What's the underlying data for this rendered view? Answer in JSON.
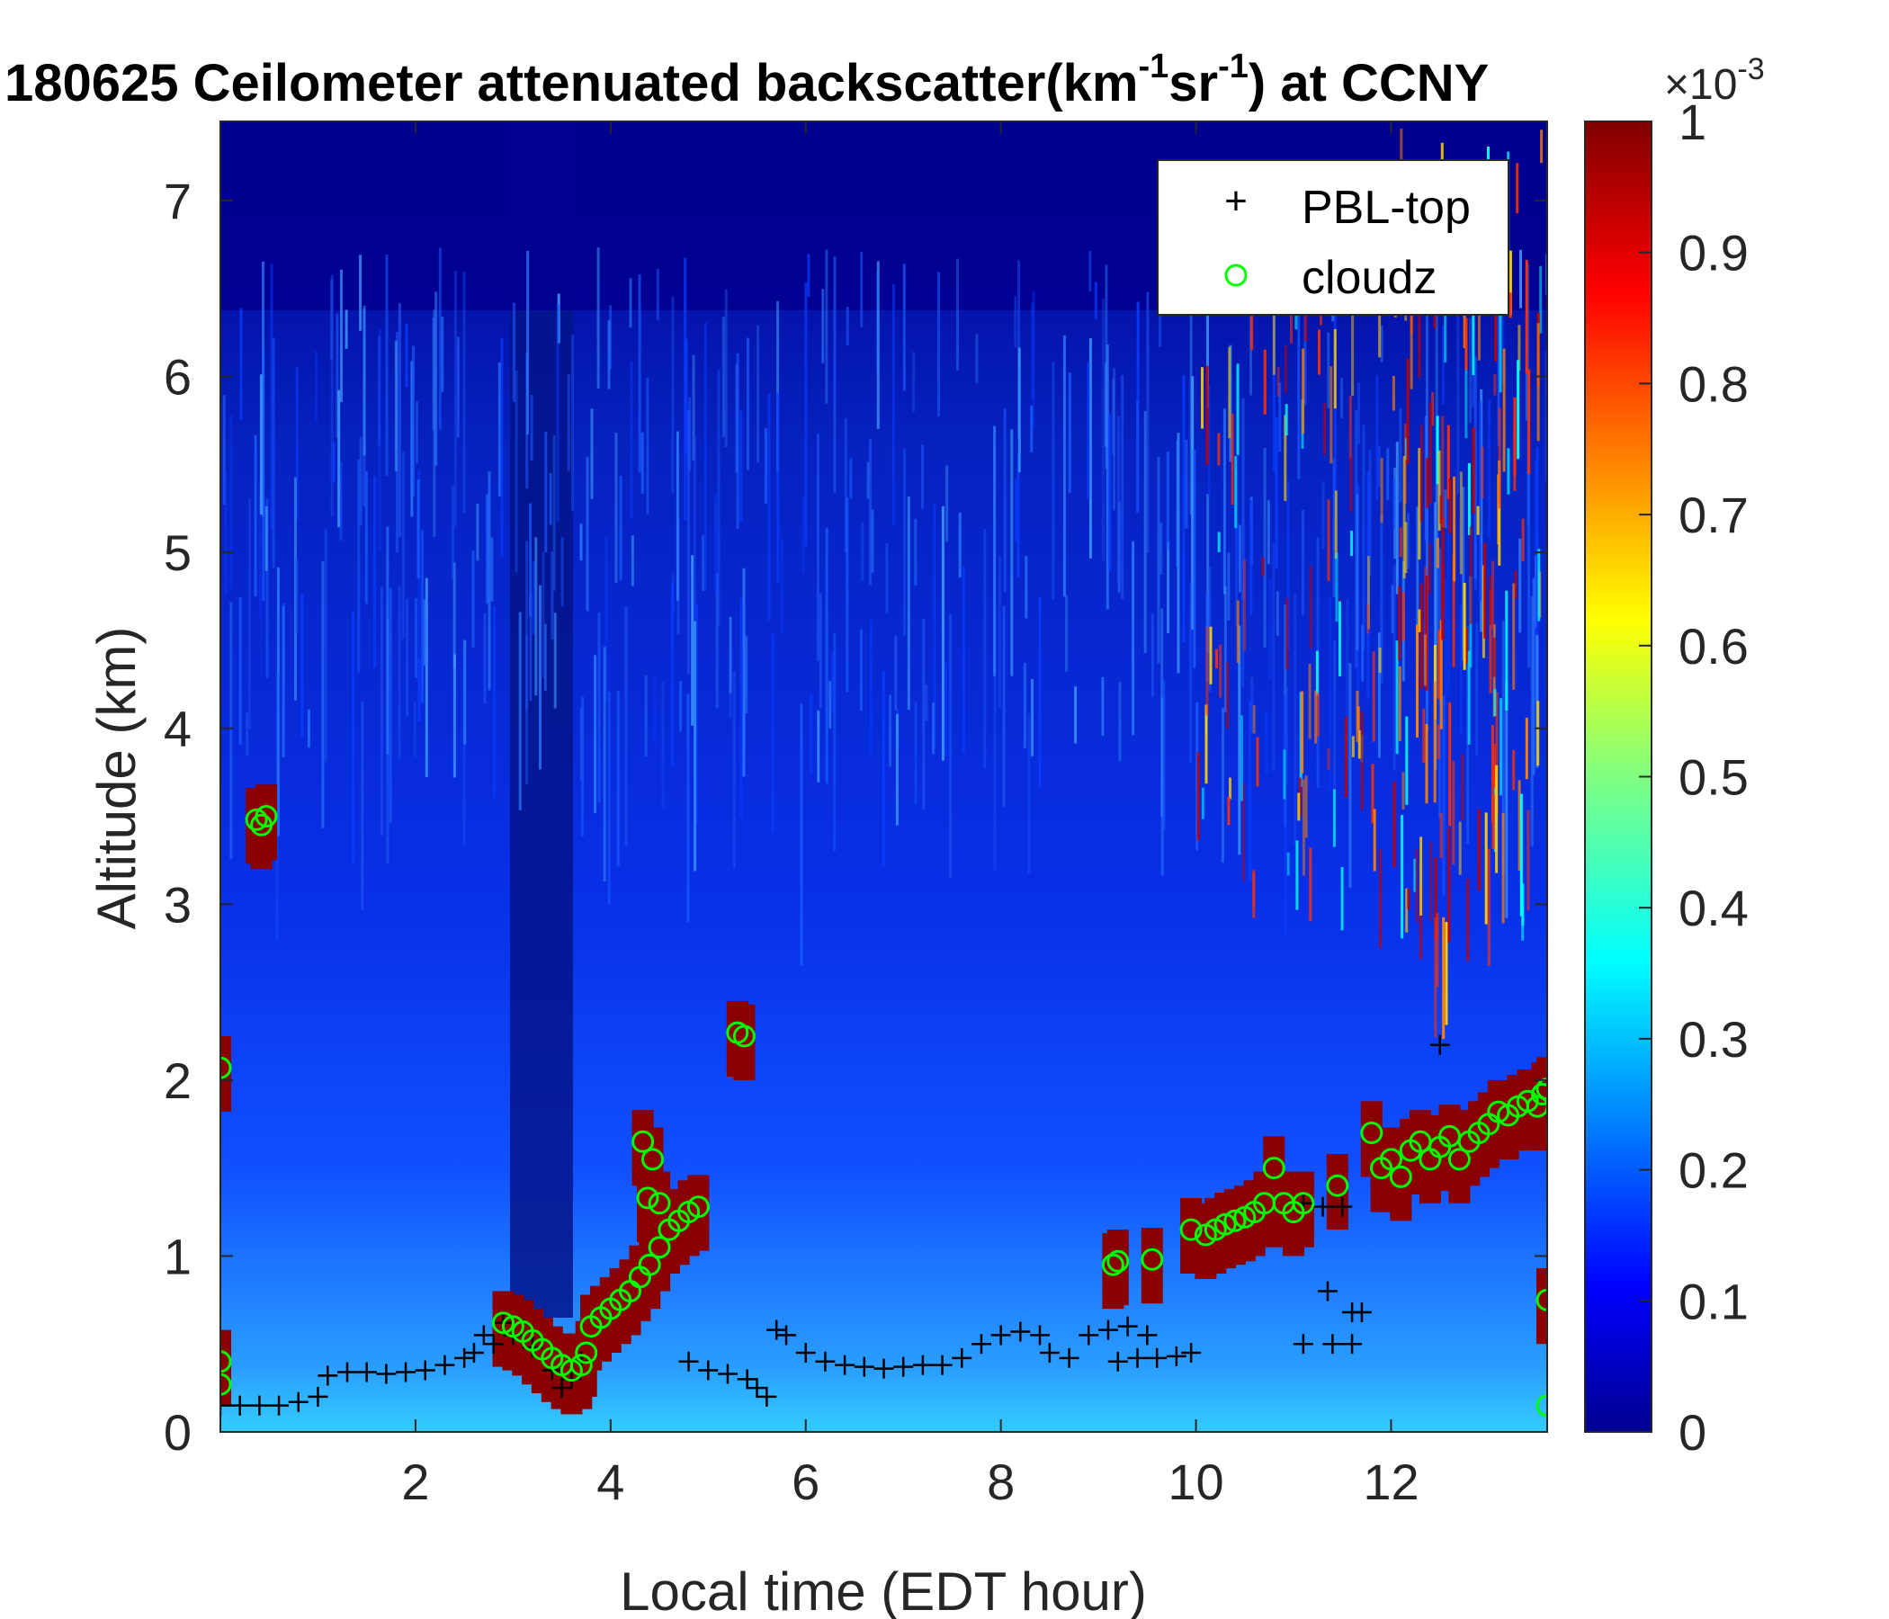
{
  "chart_data": {
    "type": "heatmap",
    "title": {
      "prefix": "180625 Ceilometer attenuated backscatter(km",
      "sup1": "-1",
      "mid": "sr",
      "sup2": "-1",
      "suffix": ") at CCNY"
    },
    "xlabel": "Local time (EDT hour)",
    "ylabel": "Altitude (km)",
    "xlim": [
      0,
      13.6
    ],
    "ylim": [
      0,
      7.45
    ],
    "xticks": [
      2,
      4,
      6,
      8,
      10,
      12
    ],
    "yticks": [
      0,
      1,
      2,
      3,
      4,
      5,
      6,
      7
    ],
    "colorbar": {
      "colormap": "jet",
      "range": [
        0,
        1
      ],
      "ticks": [
        0,
        0.1,
        0.2,
        0.3,
        0.4,
        0.5,
        0.6,
        0.7,
        0.8,
        0.9,
        1
      ],
      "multiplier": "×10",
      "multiplier_exp": "-3"
    },
    "legend": {
      "position": "top-right",
      "entries": [
        {
          "name": "PBL-top",
          "marker": "+",
          "color": "#000000"
        },
        {
          "name": "cloudz",
          "marker": "o",
          "color": "#00ff00"
        }
      ]
    },
    "series": [
      {
        "name": "PBL-top",
        "points": [
          [
            0.0,
            0.15
          ],
          [
            0.2,
            0.15
          ],
          [
            0.4,
            0.15
          ],
          [
            0.6,
            0.15
          ],
          [
            0.8,
            0.17
          ],
          [
            1.0,
            0.2
          ],
          [
            1.1,
            0.32
          ],
          [
            1.3,
            0.34
          ],
          [
            1.5,
            0.34
          ],
          [
            1.7,
            0.33
          ],
          [
            1.9,
            0.34
          ],
          [
            2.1,
            0.35
          ],
          [
            2.3,
            0.38
          ],
          [
            2.5,
            0.42
          ],
          [
            2.6,
            0.45
          ],
          [
            2.7,
            0.55
          ],
          [
            2.8,
            0.5
          ],
          [
            2.9,
            0.62
          ],
          [
            3.0,
            0.55
          ],
          [
            3.2,
            0.48
          ],
          [
            3.4,
            0.35
          ],
          [
            3.5,
            0.25
          ],
          [
            3.6,
            0.3
          ],
          [
            3.7,
            0.4
          ],
          [
            4.8,
            0.4
          ],
          [
            5.0,
            0.35
          ],
          [
            5.2,
            0.33
          ],
          [
            5.4,
            0.3
          ],
          [
            5.5,
            0.25
          ],
          [
            5.6,
            0.2
          ],
          [
            5.7,
            0.58
          ],
          [
            5.8,
            0.55
          ],
          [
            6.0,
            0.45
          ],
          [
            6.2,
            0.4
          ],
          [
            6.4,
            0.38
          ],
          [
            6.6,
            0.37
          ],
          [
            6.8,
            0.36
          ],
          [
            7.0,
            0.37
          ],
          [
            7.2,
            0.38
          ],
          [
            7.4,
            0.38
          ],
          [
            7.6,
            0.42
          ],
          [
            7.8,
            0.5
          ],
          [
            8.0,
            0.55
          ],
          [
            8.2,
            0.57
          ],
          [
            8.4,
            0.55
          ],
          [
            8.5,
            0.45
          ],
          [
            8.7,
            0.42
          ],
          [
            8.9,
            0.55
          ],
          [
            9.1,
            0.58
          ],
          [
            9.3,
            0.6
          ],
          [
            9.5,
            0.55
          ],
          [
            9.2,
            0.4
          ],
          [
            9.4,
            0.42
          ],
          [
            9.6,
            0.42
          ],
          [
            9.8,
            0.43
          ],
          [
            9.95,
            0.45
          ],
          [
            11.1,
            0.5
          ],
          [
            11.4,
            0.5
          ],
          [
            11.6,
            0.5
          ],
          [
            11.35,
            0.8
          ],
          [
            11.6,
            0.68
          ],
          [
            11.7,
            0.68
          ],
          [
            11.1,
            1.3
          ],
          [
            11.3,
            1.28
          ],
          [
            11.5,
            1.28
          ],
          [
            12.5,
            2.2
          ]
        ]
      },
      {
        "name": "cloudz",
        "points": [
          [
            0.0,
            2.07
          ],
          [
            0.0,
            0.4
          ],
          [
            0.0,
            0.27
          ],
          [
            0.37,
            3.48
          ],
          [
            0.42,
            3.45
          ],
          [
            0.47,
            3.5
          ],
          [
            2.9,
            0.62
          ],
          [
            3.0,
            0.6
          ],
          [
            3.1,
            0.57
          ],
          [
            3.2,
            0.52
          ],
          [
            3.3,
            0.47
          ],
          [
            3.4,
            0.42
          ],
          [
            3.5,
            0.38
          ],
          [
            3.6,
            0.35
          ],
          [
            3.7,
            0.38
          ],
          [
            3.75,
            0.45
          ],
          [
            3.8,
            0.6
          ],
          [
            3.9,
            0.65
          ],
          [
            4.0,
            0.7
          ],
          [
            4.1,
            0.75
          ],
          [
            4.2,
            0.8
          ],
          [
            4.3,
            0.88
          ],
          [
            4.4,
            0.95
          ],
          [
            4.5,
            1.05
          ],
          [
            4.6,
            1.15
          ],
          [
            4.7,
            1.2
          ],
          [
            4.8,
            1.25
          ],
          [
            4.9,
            1.28
          ],
          [
            4.33,
            1.65
          ],
          [
            4.43,
            1.55
          ],
          [
            4.38,
            1.33
          ],
          [
            4.5,
            1.3
          ],
          [
            5.3,
            2.27
          ],
          [
            5.37,
            2.25
          ],
          [
            9.15,
            0.95
          ],
          [
            9.2,
            0.97
          ],
          [
            9.55,
            0.98
          ],
          [
            9.95,
            1.15
          ],
          [
            10.1,
            1.12
          ],
          [
            10.2,
            1.15
          ],
          [
            10.3,
            1.18
          ],
          [
            10.4,
            1.2
          ],
          [
            10.5,
            1.22
          ],
          [
            10.6,
            1.25
          ],
          [
            10.7,
            1.3
          ],
          [
            10.8,
            1.5
          ],
          [
            10.9,
            1.3
          ],
          [
            11.0,
            1.25
          ],
          [
            11.1,
            1.3
          ],
          [
            11.45,
            1.4
          ],
          [
            11.8,
            1.7
          ],
          [
            11.9,
            1.5
          ],
          [
            12.0,
            1.55
          ],
          [
            12.1,
            1.45
          ],
          [
            12.2,
            1.6
          ],
          [
            12.3,
            1.65
          ],
          [
            12.4,
            1.55
          ],
          [
            12.5,
            1.62
          ],
          [
            12.6,
            1.68
          ],
          [
            12.7,
            1.55
          ],
          [
            12.8,
            1.65
          ],
          [
            12.9,
            1.7
          ],
          [
            13.0,
            1.75
          ],
          [
            13.1,
            1.82
          ],
          [
            13.2,
            1.8
          ],
          [
            13.3,
            1.85
          ],
          [
            13.4,
            1.88
          ],
          [
            13.5,
            1.85
          ],
          [
            13.55,
            1.92
          ],
          [
            13.6,
            1.95
          ],
          [
            13.6,
            0.75
          ],
          [
            13.6,
            0.15
          ]
        ]
      }
    ]
  }
}
